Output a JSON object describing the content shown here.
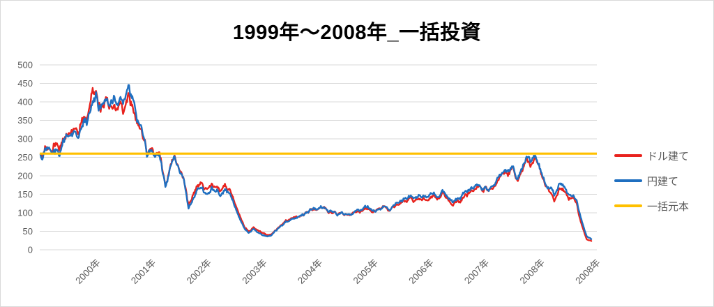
{
  "chart_data": {
    "type": "line",
    "title": "1999年〜2008年_一括投資",
    "x_start": "1999-01",
    "x_end": "2008-12",
    "x_unit": "month",
    "xlabel": "",
    "ylabel": "",
    "ylim": [
      0,
      500
    ],
    "ytick_step": 50,
    "ytick_labels_top_down": [
      "500",
      "450",
      "400",
      "350",
      "300",
      "250",
      "200",
      "150",
      "100",
      "50",
      "0"
    ],
    "xtick_labels": [
      "2000年",
      "2001年",
      "2002年",
      "2003年",
      "2004年",
      "2005年",
      "2006年",
      "2007年",
      "2008年",
      "2008年"
    ],
    "grid": "horizontal",
    "grid_color": "#d9d9d9",
    "tick_label_color": "#595959",
    "legend_position": "right",
    "series": [
      {
        "name": "ドル建て",
        "color": "#e8231e",
        "values": [
          262,
          270,
          282,
          296,
          288,
          312,
          332,
          348,
          342,
          362,
          348,
          388,
          406,
          382,
          396,
          402,
          398,
          408,
          385,
          398,
          372,
          342,
          302,
          252,
          286,
          262,
          235,
          168,
          218,
          246,
          228,
          198,
          122,
          145,
          168,
          176,
          168,
          178,
          182,
          166,
          172,
          156,
          122,
          88,
          62,
          50,
          64,
          52,
          46,
          42,
          44,
          56,
          66,
          76,
          82,
          86,
          91,
          96,
          101,
          106,
          109,
          111,
          106,
          99,
          93,
          96,
          91,
          96,
          99,
          103,
          109,
          113,
          111,
          109,
          113,
          109,
          113,
          119,
          126,
          131,
          136,
          129,
          139,
          146,
          151,
          149,
          146,
          153,
          136,
          127,
          131,
          136,
          143,
          151,
          156,
          161,
          166,
          171,
          179,
          191,
          203,
          196,
          211,
          182,
          206,
          240,
          226,
          231,
          206,
          172,
          152,
          137,
          161,
          156,
          141,
          131,
          111,
          62,
          26,
          22
        ]
      },
      {
        "name": "円建て",
        "color": "#1f6fc0",
        "values": [
          258,
          265,
          275,
          286,
          280,
          300,
          318,
          334,
          330,
          348,
          338,
          372,
          392,
          386,
          398,
          416,
          428,
          424,
          402,
          412,
          392,
          356,
          312,
          246,
          280,
          256,
          228,
          162,
          212,
          240,
          222,
          192,
          112,
          136,
          158,
          166,
          158,
          166,
          172,
          157,
          162,
          147,
          114,
          82,
          57,
          44,
          58,
          46,
          41,
          39,
          41,
          53,
          63,
          73,
          79,
          84,
          90,
          96,
          102,
          107,
          111,
          113,
          108,
          101,
          95,
          98,
          93,
          98,
          101,
          106,
          112,
          116,
          114,
          112,
          116,
          113,
          117,
          123,
          131,
          137,
          142,
          135,
          145,
          153,
          158,
          155,
          151,
          158,
          141,
          131,
          136,
          141,
          148,
          155,
          160,
          165,
          169,
          174,
          182,
          194,
          206,
          199,
          216,
          190,
          214,
          250,
          236,
          241,
          216,
          182,
          162,
          147,
          171,
          166,
          151,
          141,
          121,
          72,
          34,
          28
        ]
      },
      {
        "name": "一括元本",
        "type": "constant",
        "color": "#ffc000",
        "value": 260
      }
    ]
  }
}
